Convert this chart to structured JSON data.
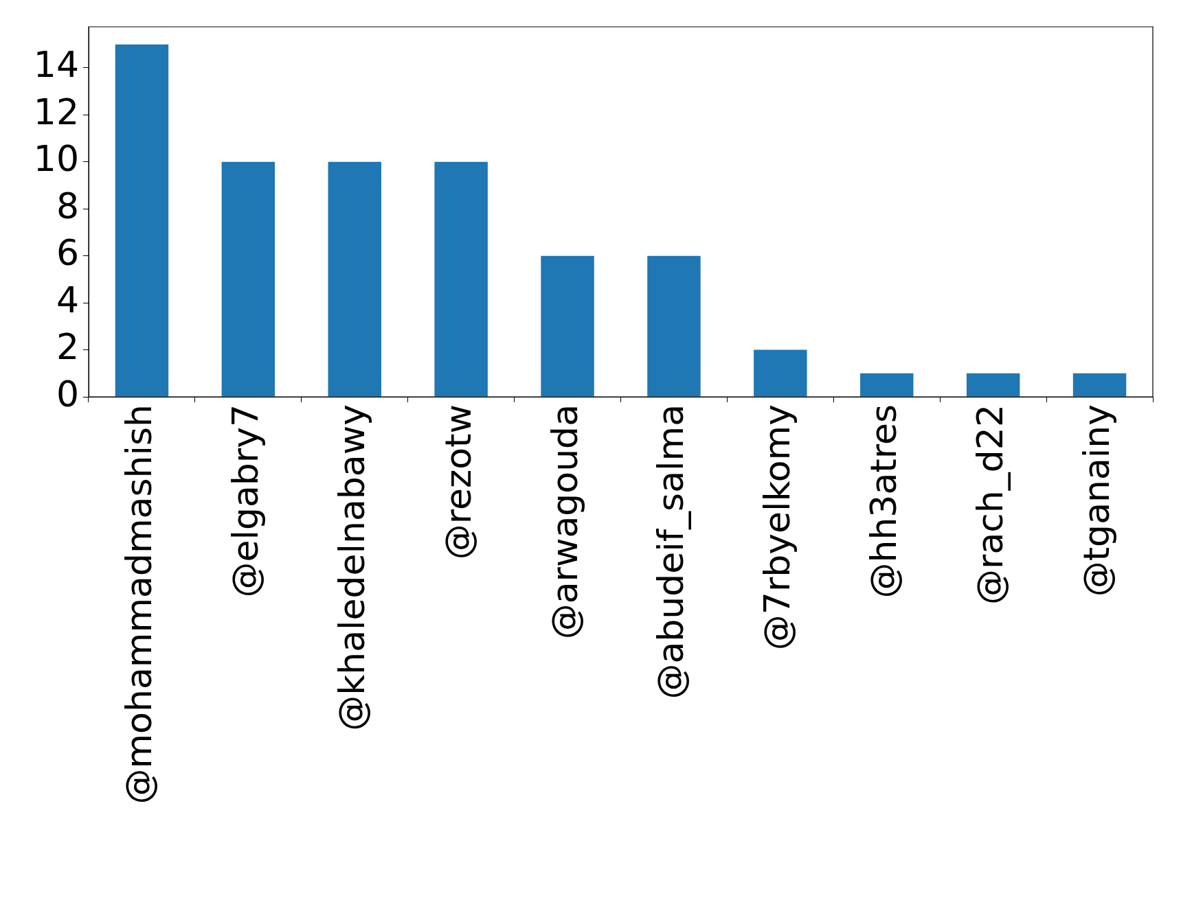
{
  "chart_data": {
    "type": "bar",
    "categories": [
      "@mohammadmashish",
      "@elgabry7",
      "@khaledelnabawy",
      "@rezotw",
      "@arwagouda",
      "@abudeif_salma",
      "@7rbyelkomy",
      "@hh3atres",
      "@rach_d22",
      "@tganainy"
    ],
    "values": [
      15,
      10,
      10,
      10,
      6,
      6,
      2,
      1,
      1,
      1
    ],
    "color": "#1f77b4",
    "ylim": [
      0,
      15.75
    ],
    "yticks": [
      0,
      2,
      4,
      6,
      8,
      10,
      12,
      14
    ],
    "grid": false,
    "legend": false
  }
}
